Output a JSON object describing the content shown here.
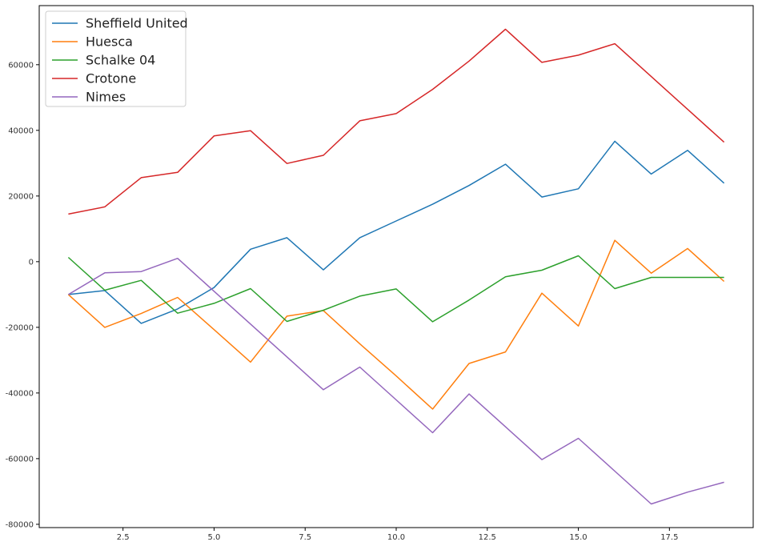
{
  "chart_data": {
    "type": "line",
    "title": "",
    "xlabel": "",
    "ylabel": "",
    "xlim": [
      0.2,
      19.8
    ],
    "ylim": [
      -81000,
      78000
    ],
    "xticks": [
      2.5,
      5.0,
      7.5,
      10.0,
      12.5,
      15.0,
      17.5
    ],
    "xtick_labels": [
      "2.5",
      "5.0",
      "7.5",
      "10.0",
      "12.5",
      "15.0",
      "17.5"
    ],
    "yticks": [
      -80000,
      -60000,
      -40000,
      -20000,
      0,
      20000,
      40000,
      60000
    ],
    "ytick_labels": [
      "-80000",
      "-60000",
      "-40000",
      "-20000",
      "0",
      "20000",
      "40000",
      "60000"
    ],
    "grid": false,
    "legend_position": "top-left",
    "x": [
      1,
      2,
      3,
      4,
      5,
      6,
      7,
      8,
      9,
      10,
      11,
      12,
      13,
      14,
      15,
      16,
      17,
      18,
      19
    ],
    "series": [
      {
        "name": "Sheffield United",
        "color": "#1f77b4",
        "values": [
          -10000,
          -8800,
          -18800,
          -14400,
          -7900,
          3800,
          7300,
          -2500,
          7300,
          12400,
          17500,
          23200,
          29700,
          19700,
          22200,
          36700,
          26700,
          33900,
          23900
        ]
      },
      {
        "name": "Huesca",
        "color": "#ff7f0e",
        "values": [
          -10000,
          -20000,
          -15800,
          -10900,
          -20700,
          -30600,
          -16600,
          -14900,
          -25000,
          -34800,
          -44900,
          -31000,
          -27500,
          -9600,
          -19600,
          6500,
          -3500,
          4000,
          -6000
        ]
      },
      {
        "name": "Schalke 04",
        "color": "#2ca02c",
        "values": [
          1300,
          -8700,
          -5700,
          -15700,
          -12700,
          -8200,
          -18200,
          -14800,
          -10500,
          -8300,
          -18300,
          -11700,
          -4600,
          -2600,
          1800,
          -8200,
          -4800,
          -4800,
          -4800
        ]
      },
      {
        "name": "Crotone",
        "color": "#d62728",
        "values": [
          14500,
          16700,
          25600,
          27200,
          38300,
          39900,
          29900,
          32400,
          42900,
          45100,
          52500,
          61100,
          70800,
          60700,
          62900,
          66400,
          56400,
          46400,
          36400
        ]
      },
      {
        "name": "Nimes",
        "color": "#9467bd",
        "values": [
          -10000,
          -3400,
          -3000,
          1000,
          -9000,
          -19000,
          -29000,
          -39000,
          -32100,
          -42100,
          -52100,
          -40300,
          -50300,
          -60300,
          -53800,
          -63800,
          -73800,
          -70200,
          -67200
        ]
      }
    ]
  }
}
